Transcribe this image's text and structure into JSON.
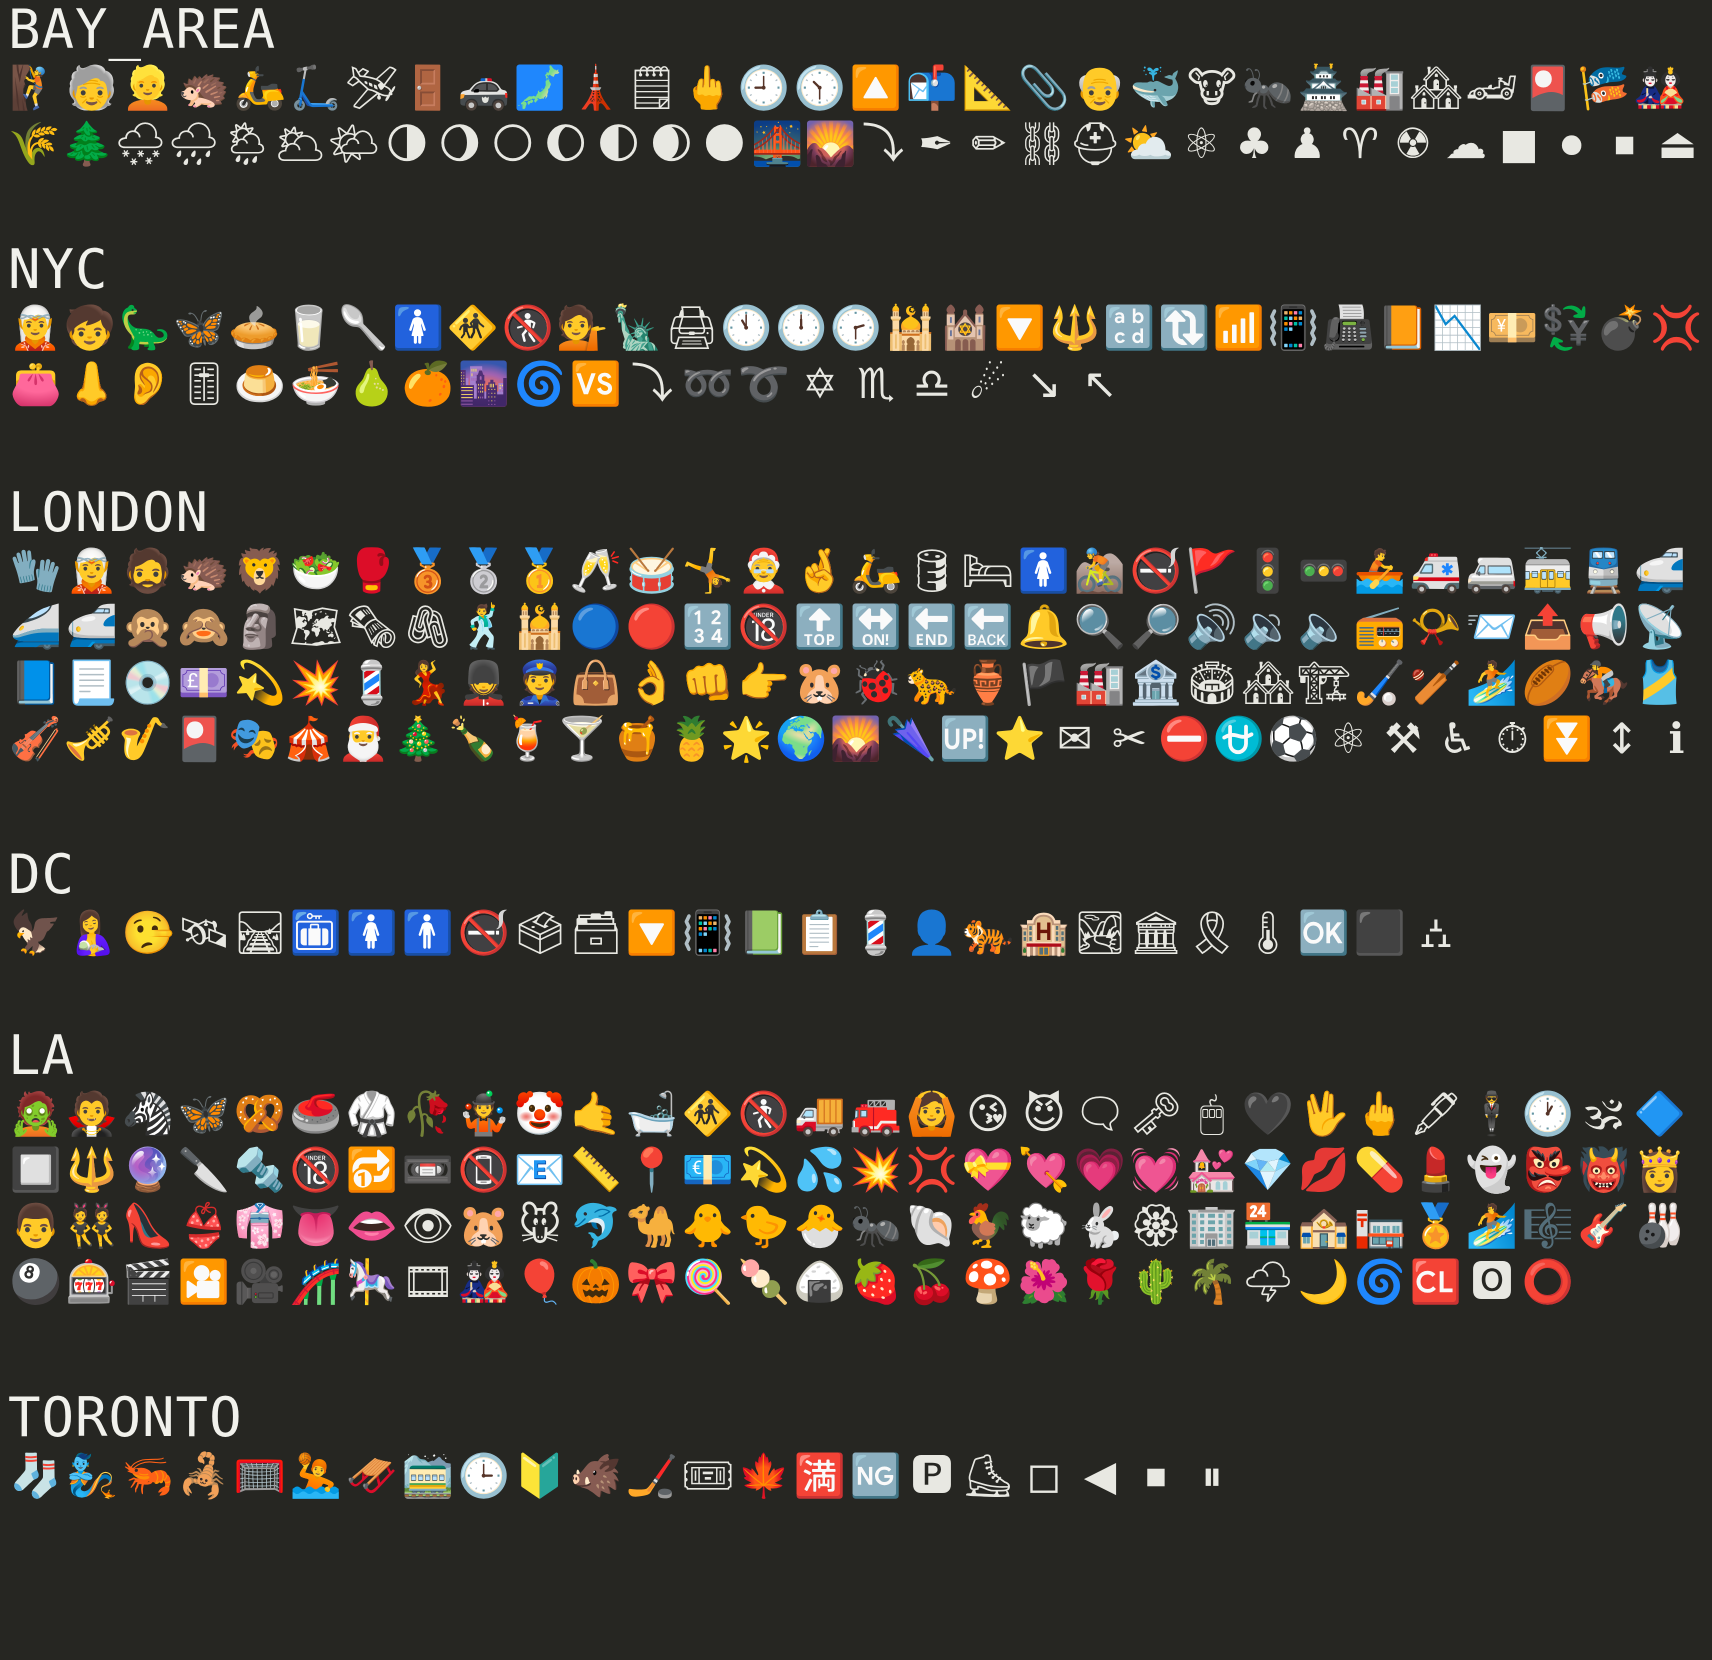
{
  "sections": [
    {
      "id": "bay",
      "title": "BAY_AREA",
      "rows": [
        [
          "🧗",
          "🧓",
          "👱",
          "🦔",
          "🛵",
          "🛴",
          "🛩",
          "🚪",
          "🚓",
          "🗾",
          "🗼",
          "🗒",
          "🖕",
          "🕘",
          "🕥",
          "🔼",
          "📬",
          "📐",
          "📎",
          "👴",
          "🐳",
          "🐮",
          "🐜",
          "🏯",
          "🏭",
          "🏘",
          "🏎",
          "🎴",
          "🎏",
          "🎎"
        ],
        [
          "🌾",
          "🌲",
          "🌨",
          "🌧",
          "🌦",
          "🌥",
          "🌤",
          "🌗",
          "🌖",
          "🌕",
          "🌔",
          "🌓",
          "🌒",
          "🌑",
          "🌉",
          "🌄",
          "⤵",
          "✒",
          "✏",
          "⛓",
          "⛑",
          "⛅",
          "⚛",
          "♣",
          "♟",
          "♈",
          "☢",
          "☁",
          "■",
          "⏺",
          "⏹",
          "⏏"
        ]
      ]
    },
    {
      "id": "nyc",
      "title": "NYC",
      "rows": [
        [
          "🧝",
          "🧒",
          "🦕",
          "🦋",
          "🥧",
          "🥛",
          "🥄",
          "🚺",
          "🚸",
          "🚷",
          "💁",
          "🗽",
          "🖨",
          "🕚",
          "🕛",
          "🕝",
          "🕌",
          "🕍",
          "🔽",
          "🔱",
          "🔡",
          "🔃",
          "📶",
          "📳",
          "📠",
          "📙",
          "📉",
          "💴",
          "💱",
          "💣",
          "💢"
        ],
        [
          "👛",
          "👃",
          "👂",
          "🎚",
          "🍮",
          "🍜",
          "🍐",
          "🍊",
          "🌆",
          "🌀",
          "🆚",
          "⤵",
          "➿",
          "➰",
          "✡",
          "♏",
          "♎",
          "☄",
          "↘",
          "↖"
        ]
      ]
    },
    {
      "id": "london",
      "title": "LONDON",
      "rows": [
        [
          "🧤",
          "🧝",
          "🧔",
          "🦔",
          "🦁",
          "🥗",
          "🥊",
          "🥉",
          "🥈",
          "🥇",
          "🥂",
          "🥁",
          "🤸",
          "🤶",
          "🤞",
          "🛵",
          "🛢",
          "🛏",
          "🚺",
          "🚵",
          "🚭",
          "🚩",
          "🚦",
          "🚥",
          "🚣",
          "🚑",
          "🚐",
          "🚋",
          "🚆",
          "🚅"
        ],
        [
          "🚄",
          "🚅",
          "🙊",
          "🙈",
          "🗿",
          "🗺",
          "🗞",
          "🖇",
          "🕺",
          "🕌",
          "🔵",
          "🔴",
          "🔢",
          "🔞",
          "🔝",
          "🔛",
          "🔚",
          "🔙",
          "🔔",
          "🔍",
          "🔎",
          "🔊",
          "🔉",
          "🔈",
          "📻",
          "📯",
          "📨",
          "📤",
          "📢",
          "📡"
        ],
        [
          "📘",
          "📃",
          "💿",
          "💷",
          "💫",
          "💥",
          "💈",
          "💃",
          "💂",
          "👮",
          "👜",
          "👌",
          "👊",
          "👉",
          "🐹",
          "🐞",
          "🐆",
          "🏺",
          "🏴",
          "🏭",
          "🏦",
          "🏟",
          "🏘",
          "🏗",
          "🏑",
          "🏏",
          "🏄",
          "🏉",
          "🏇",
          "🎽"
        ],
        [
          "🎻",
          "🎺",
          "🎷",
          "🎴",
          "🎭",
          "🎪",
          "🎅",
          "🎄",
          "🍾",
          "🍹",
          "🍸",
          "🍯",
          "🍍",
          "🌟",
          "🌍",
          "🌄",
          "🌂",
          "🆙",
          "⭐",
          "✉",
          "✂",
          "⛔",
          "⛎",
          "⚽",
          "⚛",
          "⚒",
          "♿",
          "⏱",
          "⏬",
          "↕",
          "ℹ"
        ]
      ]
    },
    {
      "id": "dc",
      "title": "DC",
      "rows": [
        [
          "🦅",
          "🤱",
          "🤥",
          "🛰",
          "🛤",
          "🛅",
          "🚺",
          "🚹",
          "🚭",
          "🗳",
          "🗃",
          "🔽",
          "📳",
          "📗",
          "📋",
          "💈",
          "👤",
          "🐅",
          "🏨",
          "🏞",
          "🏛",
          "🎗",
          "🌡",
          "🆗",
          "⬛",
          "⛼"
        ]
      ]
    },
    {
      "id": "la",
      "title": "LA",
      "rows": [
        [
          "🧟",
          "🧛",
          "🦓",
          "🦋",
          "🥨",
          "🥌",
          "🥋",
          "🥀",
          "🤹",
          "🤡",
          "🤙",
          "🛁",
          "🚸",
          "🚷",
          "🚚",
          "🚒",
          "🙆",
          "😘",
          "😈",
          "🗨",
          "🗝",
          "🖱",
          "🖤",
          "🖖",
          "🖕",
          "🖋",
          "🕴",
          "🕐",
          "🕉",
          "🔷"
        ],
        [
          "🔲",
          "🔱",
          "🔮",
          "🔪",
          "🔩",
          "🔞",
          "🔂",
          "📼",
          "📵",
          "📧",
          "📏",
          "📍",
          "💶",
          "💫",
          "💦",
          "💥",
          "💢",
          "💝",
          "💘",
          "💗",
          "💓",
          "💒",
          "💎",
          "💋",
          "💊",
          "💄",
          "👻",
          "👺",
          "👹",
          "👸"
        ],
        [
          "👨",
          "👯",
          "👠",
          "👙",
          "👘",
          "👅",
          "👄",
          "👁",
          "🐹",
          "🐭",
          "🐬",
          "🐪",
          "🐥",
          "🐤",
          "🐣",
          "🐜",
          "🐚",
          "🐓",
          "🐑",
          "🐇",
          "🏵",
          "🏢",
          "🏪",
          "🏤",
          "🏣",
          "🏅",
          "🏄",
          "🎼",
          "🎸",
          "🎳"
        ],
        [
          "🎱",
          "🎰",
          "🎬",
          "🎦",
          "🎥",
          "🎢",
          "🎠",
          "🎞",
          "🎎",
          "🎈",
          "🎃",
          "🎀",
          "🍭",
          "🍡",
          "🍙",
          "🍓",
          "🍒",
          "🍄",
          "🌺",
          "🌹",
          "🌵",
          "🌴",
          "🌩",
          "🌙",
          "🌀",
          "🆑",
          "🅾",
          "⭕"
        ]
      ]
    },
    {
      "id": "toronto",
      "title": "TORONTO",
      "rows": [
        [
          "🧦",
          "🧞",
          "🦐",
          "🦂",
          "🥅",
          "🤽",
          "🛷",
          "🚞",
          "🕒",
          "🔰",
          "🐗",
          "🏒",
          "🎟",
          "🍁",
          "🈵",
          "🆖",
          "🅿",
          "⛸",
          "◻",
          "◀",
          "⏹",
          "⏸"
        ]
      ]
    }
  ]
}
